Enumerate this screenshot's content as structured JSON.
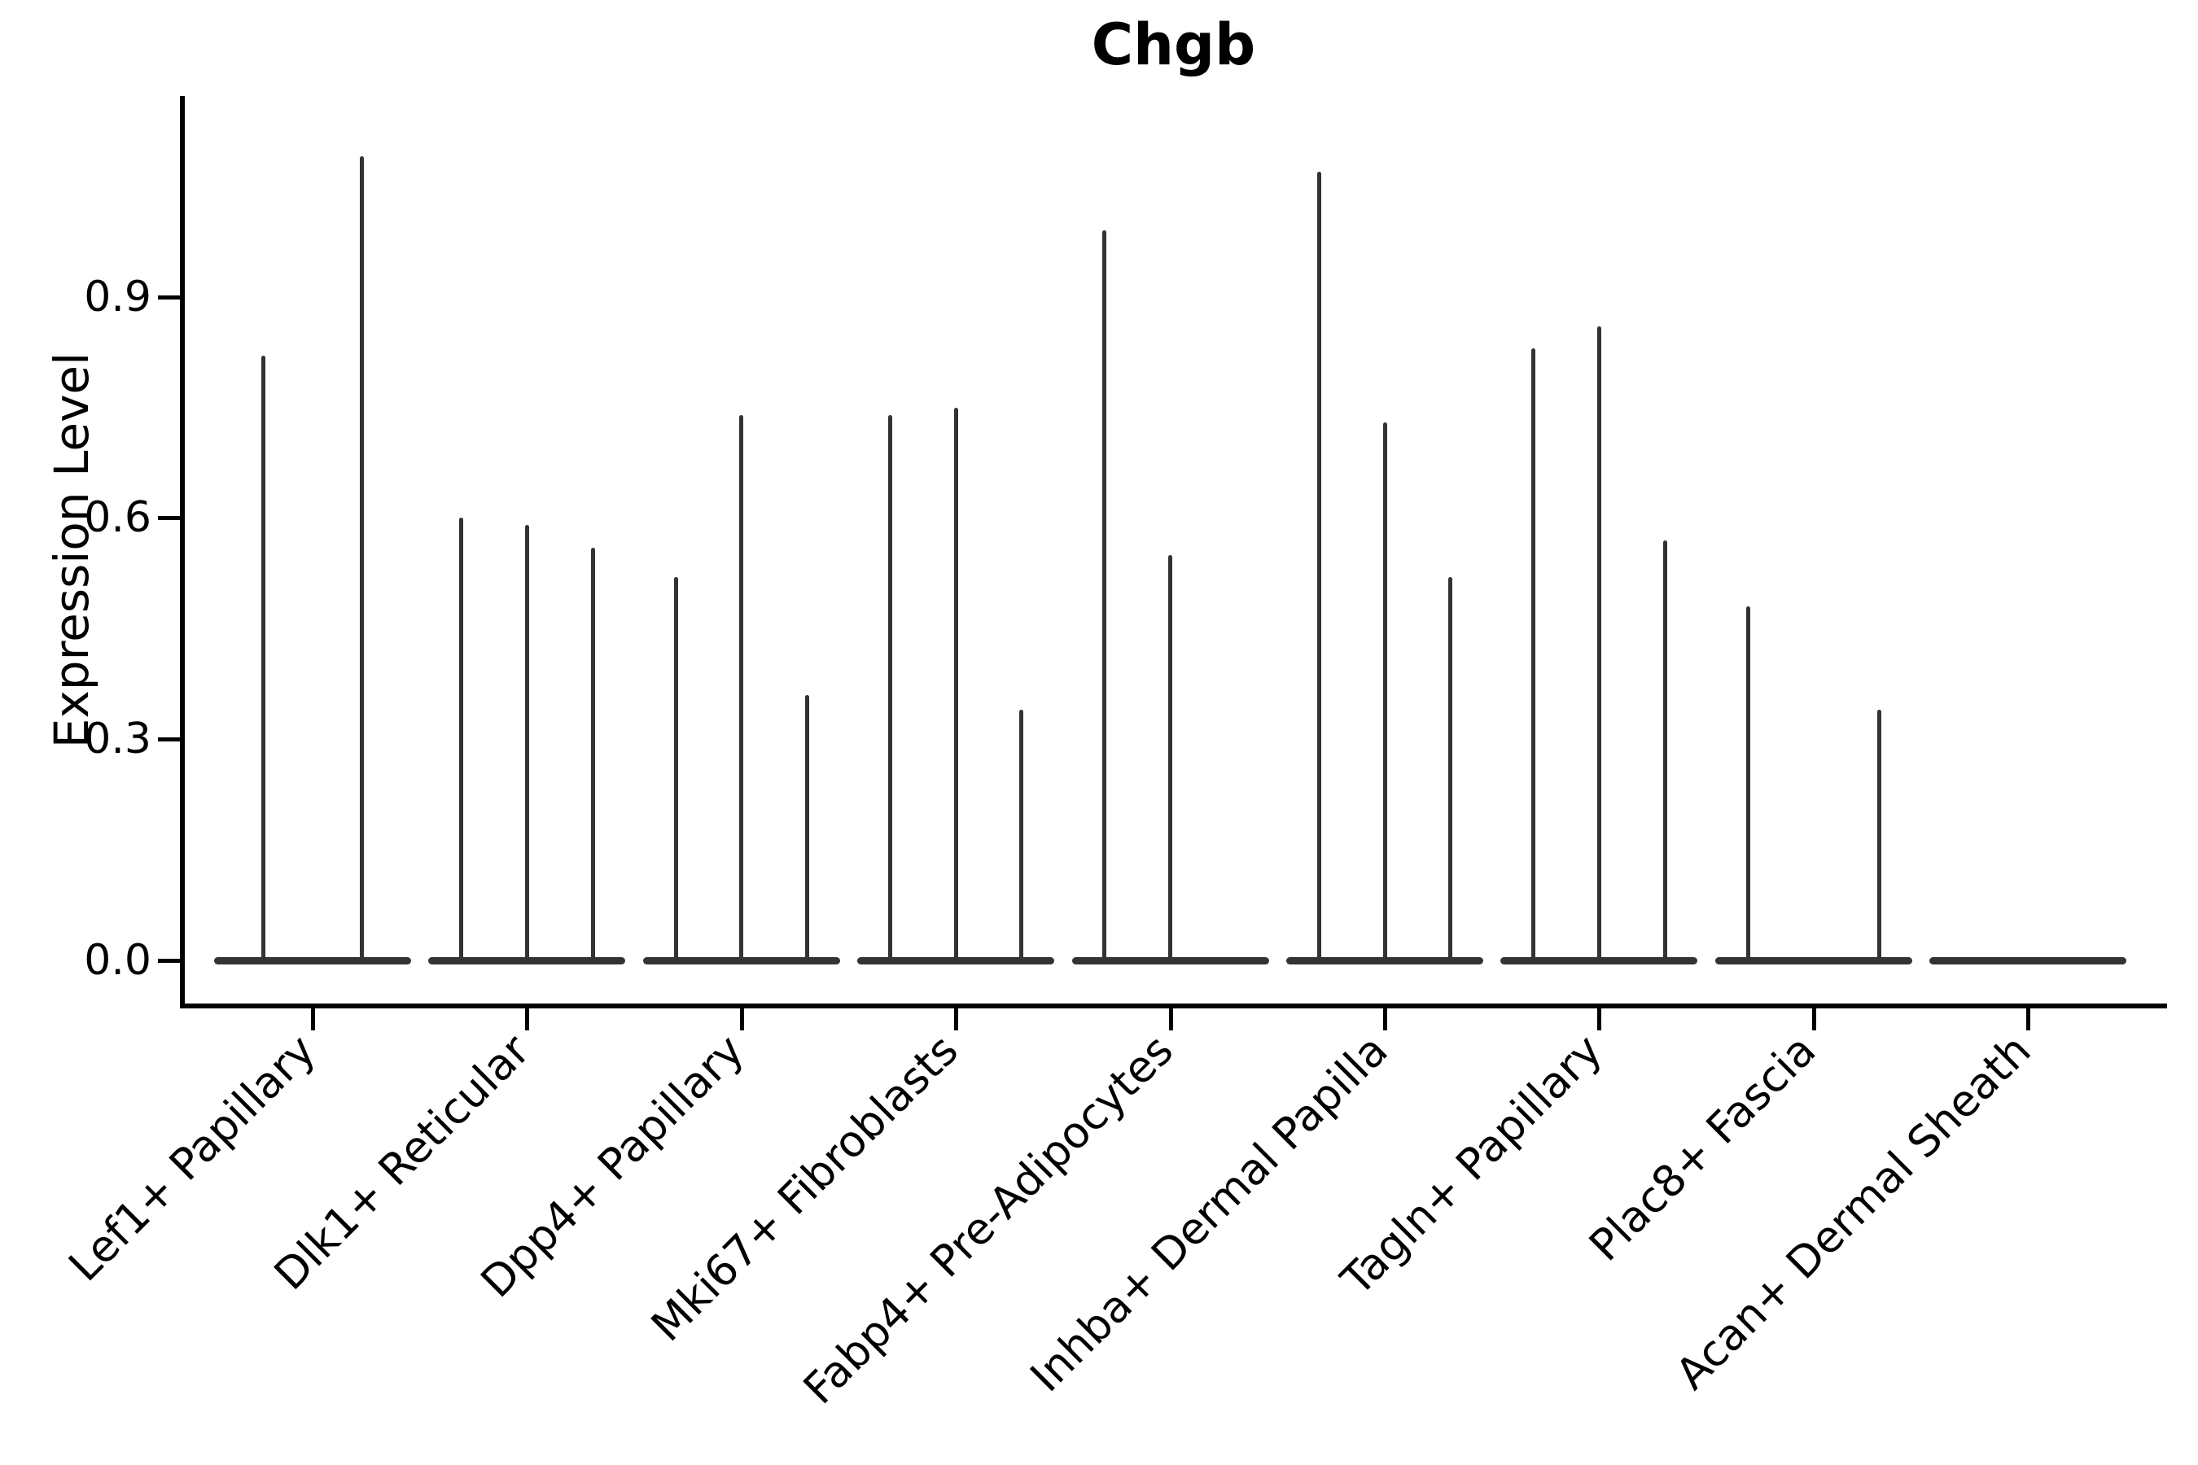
{
  "chart_data": {
    "type": "violin",
    "title": "Chgb",
    "ylabel": "Expression Level",
    "xlabel": "",
    "ylim": [
      0,
      1.17
    ],
    "ytick_labels": [
      "0.0",
      "0.3",
      "0.6",
      "0.9"
    ],
    "ytick_values": [
      0,
      0.3,
      0.6,
      0.9
    ],
    "grid": false,
    "legend": "none",
    "background": "#ffffff",
    "axis_color": "#000000",
    "violin_color": "#333333",
    "categories": [
      {
        "label": "Lef1+ Papillary",
        "violin_max_expression": [
          0.82,
          1.09
        ]
      },
      {
        "label": "Dlk1+ Reticular",
        "violin_max_expression": [
          0.6,
          0.59,
          0.56
        ]
      },
      {
        "label": "Dpp4+ Papillary",
        "violin_max_expression": [
          0.52,
          0.74,
          0.36
        ]
      },
      {
        "label": "Mki67+ Fibroblasts",
        "violin_max_expression": [
          0.74,
          0.75,
          0.34
        ]
      },
      {
        "label": "Fabp4+ Pre-Adipocytes",
        "violin_max_expression": [
          0.99,
          0.55,
          0.0
        ]
      },
      {
        "label": "Inhba+ Dermal Papilla",
        "violin_max_expression": [
          1.07,
          0.73,
          0.52
        ]
      },
      {
        "label": "Tagln+ Papillary",
        "violin_max_expression": [
          0.83,
          0.86,
          0.57
        ]
      },
      {
        "label": "Plac8+ Fascia",
        "violin_max_expression": [
          0.48,
          0.0,
          0.34
        ]
      },
      {
        "label": "Acan+ Dermal Sheath",
        "violin_max_expression": [
          0.0,
          0.0,
          0.0
        ]
      }
    ],
    "note": "Needle violin plot: density collapsed at 0 for almost all cells; each thin spike rises to that violin's maximum expression value. A value of 0 means a flat violin (base bar only)."
  }
}
